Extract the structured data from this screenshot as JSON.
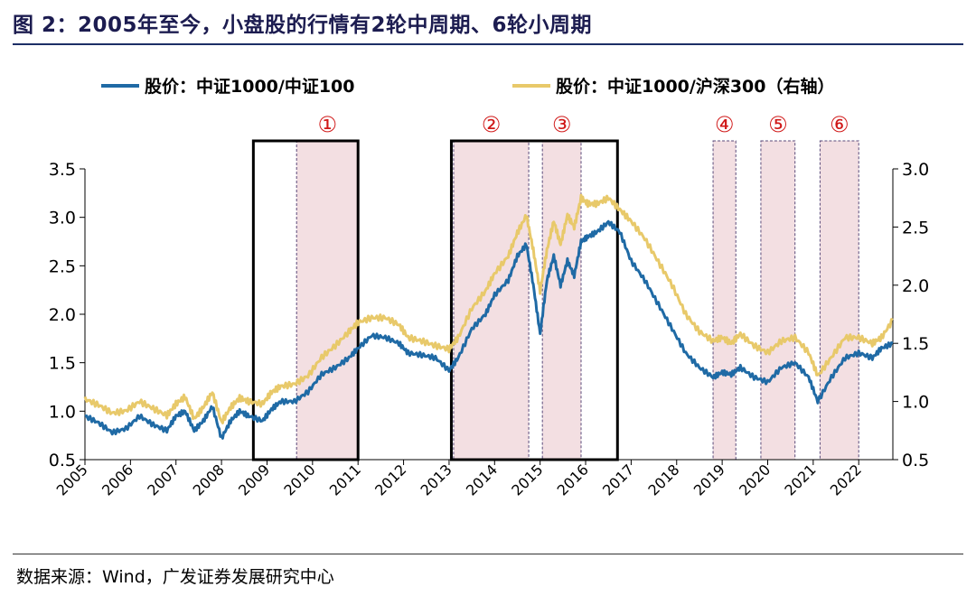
{
  "figure": {
    "title": "图 2：2005年至今，小盘股的行情有2轮中周期、6轮小周期",
    "source": "数据来源：Wind，广发证券发展研究中心"
  },
  "chart_data": {
    "type": "line",
    "legend": [
      {
        "name": "股价：中证1000/中证100",
        "color": "#1f6aa5",
        "axis": "left"
      },
      {
        "name": "股价：中证1000/沪深300（右轴）",
        "color": "#e8c96a",
        "axis": "right"
      }
    ],
    "x_ticks": [
      "2005",
      "2006",
      "2007",
      "2008",
      "2009",
      "2010",
      "2011",
      "2012",
      "2013",
      "2014",
      "2015",
      "2016",
      "2017",
      "2018",
      "2019",
      "2020",
      "2021",
      "2022"
    ],
    "xlim": [
      2005.0,
      2022.75
    ],
    "y_left": {
      "ylim": [
        0.5,
        3.5
      ],
      "ticks": [
        "0.5",
        "1.0",
        "1.5",
        "2.0",
        "2.5",
        "3.0",
        "3.5"
      ]
    },
    "y_right": {
      "ylim": [
        0.5,
        3.0
      ],
      "ticks": [
        "0.5",
        "1.0",
        "1.5",
        "2.0",
        "2.5",
        "3.0"
      ]
    },
    "series": [
      {
        "name": "股价：中证1000/中证100",
        "axis": "left",
        "x": [
          2005.0,
          2005.3,
          2005.6,
          2005.9,
          2006.2,
          2006.5,
          2006.8,
          2007.0,
          2007.2,
          2007.4,
          2007.6,
          2007.8,
          2008.0,
          2008.2,
          2008.4,
          2008.6,
          2008.9,
          2009.1,
          2009.3,
          2009.6,
          2009.9,
          2010.2,
          2010.5,
          2010.8,
          2011.0,
          2011.3,
          2011.6,
          2011.9,
          2012.1,
          2012.4,
          2012.7,
          2013.0,
          2013.2,
          2013.5,
          2013.8,
          2014.0,
          2014.3,
          2014.5,
          2014.7,
          2014.85,
          2015.0,
          2015.15,
          2015.3,
          2015.45,
          2015.6,
          2015.75,
          2015.9,
          2016.05,
          2016.25,
          2016.5,
          2016.75,
          2017.0,
          2017.3,
          2017.6,
          2017.9,
          2018.2,
          2018.5,
          2018.8,
          2019.0,
          2019.2,
          2019.4,
          2019.7,
          2020.0,
          2020.3,
          2020.6,
          2020.9,
          2021.1,
          2021.4,
          2021.7,
          2022.0,
          2022.3,
          2022.5,
          2022.75
        ],
        "values": [
          0.95,
          0.88,
          0.78,
          0.82,
          0.95,
          0.86,
          0.8,
          0.95,
          1.0,
          0.8,
          0.9,
          1.05,
          0.72,
          0.9,
          1.0,
          0.95,
          0.9,
          1.02,
          1.1,
          1.1,
          1.2,
          1.38,
          1.45,
          1.55,
          1.65,
          1.78,
          1.76,
          1.7,
          1.6,
          1.58,
          1.55,
          1.42,
          1.55,
          1.85,
          2.0,
          2.2,
          2.35,
          2.6,
          2.72,
          2.3,
          1.8,
          2.35,
          2.6,
          2.3,
          2.55,
          2.4,
          2.75,
          2.8,
          2.85,
          2.95,
          2.85,
          2.55,
          2.35,
          2.1,
          1.85,
          1.6,
          1.45,
          1.35,
          1.4,
          1.38,
          1.45,
          1.35,
          1.3,
          1.45,
          1.5,
          1.35,
          1.1,
          1.35,
          1.55,
          1.6,
          1.55,
          1.65,
          1.7
        ]
      },
      {
        "name": "股价：中证1000/沪深300（右轴）",
        "axis": "right",
        "x": [
          2005.0,
          2005.3,
          2005.6,
          2005.9,
          2006.2,
          2006.5,
          2006.8,
          2007.0,
          2007.2,
          2007.4,
          2007.6,
          2007.8,
          2008.0,
          2008.2,
          2008.4,
          2008.6,
          2008.9,
          2009.1,
          2009.3,
          2009.6,
          2009.9,
          2010.2,
          2010.5,
          2010.8,
          2011.0,
          2011.3,
          2011.6,
          2011.9,
          2012.1,
          2012.4,
          2012.7,
          2013.0,
          2013.2,
          2013.5,
          2013.8,
          2014.0,
          2014.3,
          2014.5,
          2014.7,
          2014.85,
          2015.0,
          2015.15,
          2015.3,
          2015.45,
          2015.6,
          2015.75,
          2015.9,
          2016.05,
          2016.25,
          2016.5,
          2016.75,
          2017.0,
          2017.3,
          2017.6,
          2017.9,
          2018.2,
          2018.5,
          2018.8,
          2019.0,
          2019.2,
          2019.4,
          2019.7,
          2020.0,
          2020.3,
          2020.6,
          2020.9,
          2021.1,
          2021.4,
          2021.7,
          2022.0,
          2022.3,
          2022.5,
          2022.75
        ],
        "values": [
          1.02,
          0.97,
          0.9,
          0.92,
          1.0,
          0.94,
          0.88,
          0.98,
          1.04,
          0.85,
          0.95,
          1.08,
          0.82,
          0.95,
          1.03,
          1.0,
          0.98,
          1.08,
          1.13,
          1.15,
          1.22,
          1.38,
          1.48,
          1.6,
          1.68,
          1.72,
          1.72,
          1.66,
          1.55,
          1.52,
          1.48,
          1.45,
          1.55,
          1.8,
          1.95,
          2.1,
          2.25,
          2.45,
          2.6,
          2.3,
          1.95,
          2.3,
          2.55,
          2.35,
          2.6,
          2.5,
          2.75,
          2.7,
          2.7,
          2.75,
          2.65,
          2.55,
          2.4,
          2.2,
          2.0,
          1.75,
          1.6,
          1.52,
          1.55,
          1.5,
          1.58,
          1.48,
          1.42,
          1.52,
          1.55,
          1.42,
          1.22,
          1.38,
          1.55,
          1.55,
          1.5,
          1.55,
          1.7
        ]
      }
    ],
    "mid_cycles": [
      {
        "start": 2008.7,
        "end": 2011.0
      },
      {
        "start": 2013.05,
        "end": 2016.7
      }
    ],
    "small_cycles": [
      {
        "label": "①",
        "start": 2009.65,
        "end": 2011.0
      },
      {
        "label": "②",
        "start": 2013.1,
        "end": 2014.75
      },
      {
        "label": "③",
        "start": 2015.05,
        "end": 2015.9
      },
      {
        "label": "④",
        "start": 2018.8,
        "end": 2019.3
      },
      {
        "label": "⑤",
        "start": 2019.85,
        "end": 2020.6
      },
      {
        "label": "⑥",
        "start": 2021.15,
        "end": 2022.0
      }
    ]
  }
}
